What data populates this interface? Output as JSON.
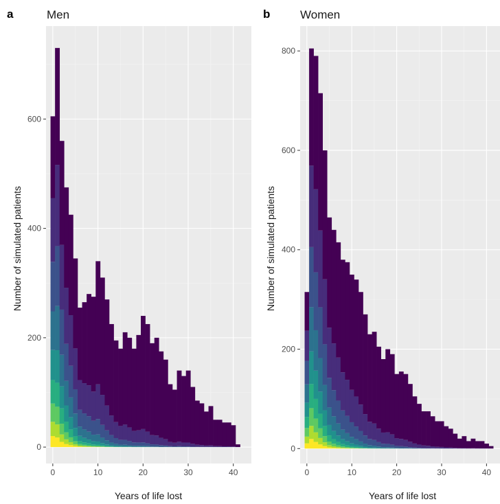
{
  "figure_colors": [
    "#440154",
    "#472d7b",
    "#3b528b",
    "#2c728e",
    "#21918c",
    "#28ae80",
    "#5ec962",
    "#addc30",
    "#fde725"
  ],
  "chart_data": [
    {
      "type": "bar",
      "panel_label": "a",
      "title": "Men",
      "xlabel": "Years of life lost",
      "ylabel": "Number of simulated patients",
      "xlim": [
        -1.5,
        44
      ],
      "ylim": [
        -30,
        770
      ],
      "xticks": [
        0,
        10,
        20,
        30,
        40
      ],
      "yticks": [
        0,
        200,
        400,
        600
      ],
      "grid": true,
      "stacked": true,
      "x": [
        0,
        1,
        2,
        3,
        4,
        5,
        6,
        7,
        8,
        9,
        10,
        11,
        12,
        13,
        14,
        15,
        16,
        17,
        18,
        19,
        20,
        21,
        22,
        23,
        24,
        25,
        26,
        27,
        28,
        29,
        30,
        31,
        32,
        33,
        34,
        35,
        36,
        37,
        38,
        39,
        40,
        41
      ],
      "totals": [
        605,
        730,
        560,
        475,
        425,
        345,
        255,
        265,
        280,
        275,
        340,
        310,
        270,
        225,
        195,
        180,
        210,
        200,
        180,
        205,
        240,
        225,
        190,
        200,
        175,
        160,
        115,
        105,
        140,
        130,
        140,
        110,
        85,
        80,
        65,
        75,
        50,
        50,
        45,
        45,
        40,
        5
      ]
    },
    {
      "type": "bar",
      "panel_label": "b",
      "title": "Women",
      "xlabel": "Years of life lost",
      "ylabel": "Number of simulated patients",
      "xlim": [
        -1.5,
        43
      ],
      "ylim": [
        -30,
        850
      ],
      "xticks": [
        0,
        10,
        20,
        30,
        40
      ],
      "yticks": [
        0,
        200,
        400,
        600,
        800
      ],
      "grid": true,
      "stacked": true,
      "x": [
        0,
        1,
        2,
        3,
        4,
        5,
        6,
        7,
        8,
        9,
        10,
        11,
        12,
        13,
        14,
        15,
        16,
        17,
        18,
        19,
        20,
        21,
        22,
        23,
        24,
        25,
        26,
        27,
        28,
        29,
        30,
        31,
        32,
        33,
        34,
        35,
        36,
        37,
        38,
        39,
        40,
        41
      ],
      "totals": [
        315,
        805,
        790,
        715,
        600,
        465,
        440,
        415,
        380,
        375,
        350,
        340,
        315,
        270,
        230,
        235,
        205,
        180,
        200,
        190,
        150,
        155,
        150,
        130,
        105,
        90,
        75,
        75,
        65,
        55,
        55,
        45,
        40,
        30,
        20,
        25,
        15,
        20,
        15,
        15,
        10,
        5
      ]
    }
  ]
}
